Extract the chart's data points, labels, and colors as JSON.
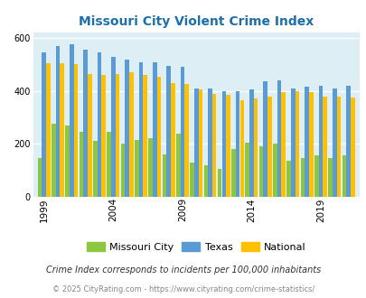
{
  "title": "Missouri City Violent Crime Index",
  "years": [
    1999,
    2000,
    2001,
    2002,
    2003,
    2004,
    2005,
    2006,
    2007,
    2008,
    2009,
    2010,
    2011,
    2012,
    2013,
    2014,
    2015,
    2016,
    2017,
    2018,
    2019,
    2020,
    2021
  ],
  "missouri_city": [
    145,
    275,
    270,
    245,
    210,
    245,
    200,
    215,
    220,
    160,
    240,
    130,
    120,
    105,
    180,
    205,
    190,
    200,
    135,
    145,
    155,
    145,
    155
  ],
  "texas": [
    545,
    570,
    575,
    555,
    545,
    530,
    520,
    510,
    510,
    495,
    490,
    410,
    410,
    400,
    400,
    405,
    435,
    440,
    410,
    415,
    420,
    408,
    418
  ],
  "national": [
    505,
    505,
    500,
    465,
    460,
    465,
    470,
    460,
    455,
    430,
    425,
    405,
    390,
    385,
    365,
    370,
    380,
    395,
    400,
    395,
    380,
    380,
    375
  ],
  "colors": {
    "missouri_city": "#8dc63f",
    "texas": "#5b9bd5",
    "national": "#ffc000"
  },
  "plot_bg": "#ddeef5",
  "ylim": [
    0,
    620
  ],
  "yticks": [
    0,
    200,
    400,
    600
  ],
  "xlabel_years": [
    1999,
    2004,
    2009,
    2014,
    2019
  ],
  "footnote1": "Crime Index corresponds to incidents per 100,000 inhabitants",
  "footnote2": "© 2025 CityRating.com - https://www.cityrating.com/crime-statistics/",
  "title_color": "#1f6fa8",
  "footnote1_color": "#333333",
  "footnote2_color": "#888888",
  "legend_labels": [
    "Missouri City",
    "Texas",
    "National"
  ]
}
